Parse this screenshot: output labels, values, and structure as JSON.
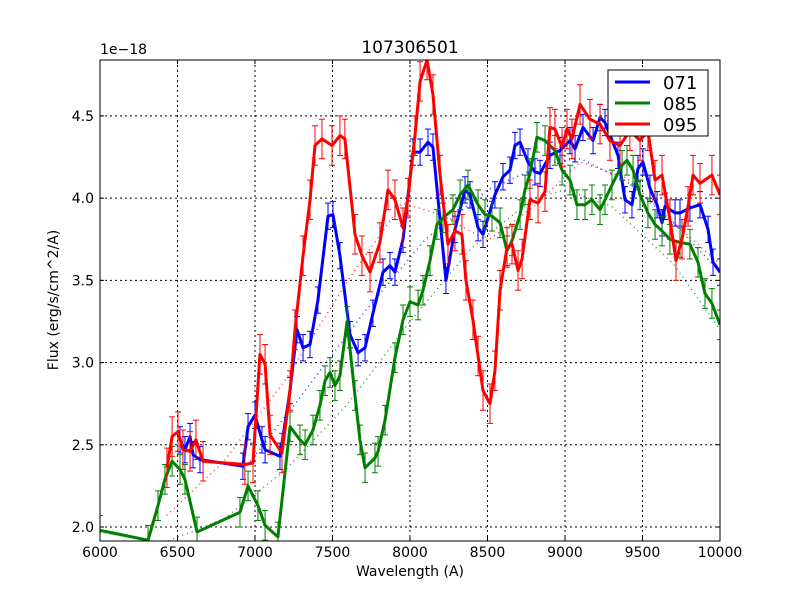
{
  "chart_data": {
    "type": "line",
    "title": "107306501",
    "xlabel": "Wavelength (A)",
    "ylabel": "Flux (erg/s/cm^2/A)",
    "offset_text": "1e−18",
    "xlim": [
      6000,
      10000
    ],
    "ylim": [
      1.915,
      4.84
    ],
    "xticks": [
      6000,
      6500,
      7000,
      7500,
      8000,
      8500,
      9000,
      9500,
      10000
    ],
    "xtick_labels": [
      "6000",
      "6500",
      "7000",
      "7500",
      "8000",
      "8500",
      "9000",
      "9500",
      "10000"
    ],
    "yticks": [
      2.0,
      2.5,
      3.0,
      3.5,
      4.0,
      4.5
    ],
    "ytick_labels": [
      "2.0",
      "2.5",
      "3.0",
      "3.5",
      "4.0",
      "4.5"
    ],
    "grid": true,
    "legend_position": "top-right",
    "series": [
      {
        "name": "071",
        "color": "#0000ff",
        "yerr": 0.08,
        "x": [
          6516,
          6548,
          6581,
          6600,
          6645,
          6922,
          6955,
          7000,
          7045,
          7065,
          7161,
          7226,
          7271,
          7310,
          7355,
          7406,
          7471,
          7503,
          7548,
          7613,
          7665,
          7710,
          7761,
          7826,
          7871,
          7903,
          7955,
          8019,
          8065,
          8116,
          8148,
          8232,
          8290,
          8355,
          8387,
          8439,
          8471,
          8548,
          8600,
          8645,
          8677,
          8710,
          8761,
          8806,
          8839,
          8903,
          8968,
          9032,
          9065,
          9116,
          9181,
          9226,
          9258,
          9342,
          9387,
          9432,
          9471,
          9503,
          9548,
          9594,
          9626,
          9645,
          9710,
          9742,
          9806,
          9871,
          9923,
          9955,
          10000
        ],
        "y": [
          2.53,
          2.47,
          2.55,
          2.44,
          2.41,
          2.37,
          2.61,
          2.68,
          2.53,
          2.47,
          2.43,
          2.83,
          3.2,
          3.09,
          3.11,
          3.38,
          3.89,
          3.9,
          3.65,
          3.17,
          3.06,
          3.09,
          3.3,
          3.55,
          3.59,
          3.55,
          3.75,
          4.28,
          4.28,
          4.34,
          4.31,
          3.5,
          3.81,
          4.05,
          4.02,
          3.82,
          3.78,
          4.02,
          4.13,
          4.17,
          4.32,
          4.34,
          4.22,
          4.16,
          4.15,
          4.26,
          4.29,
          4.35,
          4.3,
          4.43,
          4.35,
          4.49,
          4.46,
          4.26,
          3.99,
          3.96,
          4.18,
          4.22,
          4.06,
          3.96,
          3.85,
          3.95,
          3.91,
          3.91,
          3.94,
          3.96,
          3.81,
          3.61,
          3.55
        ],
        "fit": {
          "x": [
            6930,
            7300,
            7700,
            8100,
            8500,
            8900,
            9100,
            9400,
            9700,
            10000
          ],
          "y": [
            2.35,
            2.8,
            3.3,
            3.75,
            4.05,
            4.22,
            4.24,
            4.1,
            3.85,
            3.55
          ]
        }
      },
      {
        "name": "085",
        "color": "#008000",
        "yerr": 0.09,
        "x": [
          6000,
          6310,
          6374,
          6419,
          6465,
          6516,
          6548,
          6626,
          6903,
          6955,
          7019,
          7065,
          7148,
          7226,
          7290,
          7323,
          7374,
          7419,
          7452,
          7484,
          7516,
          7548,
          7594,
          7645,
          7677,
          7710,
          7774,
          7794,
          7839,
          7903,
          7955,
          8000,
          8052,
          8084,
          8129,
          8174,
          8213,
          8277,
          8323,
          8374,
          8439,
          8484,
          8529,
          8581,
          8626,
          8658,
          8710,
          8742,
          8774,
          8819,
          8871,
          8935,
          8981,
          9032,
          9077,
          9129,
          9174,
          9226,
          9258,
          9303,
          9368,
          9400,
          9439,
          9484,
          9535,
          9581,
          9626,
          9677,
          9742,
          9806,
          9858,
          9903,
          9948,
          10000
        ],
        "y": [
          1.98,
          1.92,
          2.13,
          2.29,
          2.4,
          2.35,
          2.29,
          1.97,
          2.09,
          2.25,
          2.13,
          2.01,
          1.94,
          2.61,
          2.53,
          2.5,
          2.59,
          2.74,
          2.89,
          2.94,
          2.86,
          2.92,
          3.25,
          2.8,
          2.53,
          2.36,
          2.42,
          2.46,
          2.65,
          3.03,
          3.26,
          3.37,
          3.35,
          3.44,
          3.62,
          3.84,
          3.88,
          3.93,
          4.02,
          4.08,
          3.96,
          3.9,
          3.89,
          3.85,
          3.68,
          3.74,
          3.9,
          4.05,
          4.15,
          4.37,
          4.35,
          4.29,
          4.17,
          4.11,
          3.96,
          3.96,
          3.99,
          3.93,
          3.99,
          4.08,
          4.2,
          4.23,
          4.17,
          4.02,
          3.91,
          3.84,
          3.8,
          3.75,
          3.73,
          3.72,
          3.61,
          3.42,
          3.36,
          3.23
        ],
        "fit": {
          "x": [
            6000,
            6400,
            6800,
            7200,
            7600,
            8000,
            8400,
            8800,
            9000,
            9300,
            9700,
            10000
          ],
          "y": [
            1.97,
            1.9,
            2.05,
            2.35,
            2.75,
            3.25,
            3.7,
            4.0,
            4.05,
            3.95,
            3.6,
            3.2
          ]
        }
      },
      {
        "name": "095",
        "color": "#ff0000",
        "yerr": 0.12,
        "x": [
          6432,
          6465,
          6503,
          6535,
          6581,
          6619,
          6665,
          6935,
          6987,
          7032,
          7065,
          7097,
          7174,
          7226,
          7258,
          7310,
          7355,
          7387,
          7432,
          7497,
          7548,
          7580,
          7645,
          7690,
          7742,
          7806,
          7858,
          7903,
          7955,
          7987,
          8032,
          8065,
          8110,
          8148,
          8194,
          8245,
          8290,
          8335,
          8361,
          8406,
          8439,
          8471,
          8516,
          8548,
          8581,
          8626,
          8658,
          8697,
          8723,
          8774,
          8826,
          8871,
          8903,
          8935,
          8981,
          9013,
          9045,
          9097,
          9161,
          9226,
          9290,
          9355,
          9419,
          9484,
          9535,
          9581,
          9626,
          9677,
          9716,
          9755,
          9794,
          9826,
          9871,
          9948,
          10000
        ],
        "y": [
          2.36,
          2.55,
          2.58,
          2.47,
          2.46,
          2.53,
          2.4,
          2.38,
          2.39,
          3.05,
          2.99,
          2.56,
          2.45,
          2.83,
          3.2,
          3.65,
          3.99,
          4.32,
          4.36,
          4.32,
          4.38,
          4.36,
          3.78,
          3.65,
          3.55,
          3.73,
          4.05,
          3.99,
          3.82,
          4.0,
          4.38,
          4.71,
          4.84,
          4.63,
          4.14,
          3.72,
          3.8,
          3.78,
          3.5,
          3.26,
          3.04,
          2.83,
          2.75,
          2.95,
          3.44,
          3.7,
          3.72,
          3.56,
          3.63,
          3.99,
          3.97,
          4.04,
          4.43,
          4.42,
          4.31,
          4.42,
          4.36,
          4.57,
          4.48,
          4.45,
          4.35,
          4.32,
          4.41,
          4.35,
          4.41,
          4.11,
          4.14,
          3.87,
          3.62,
          3.75,
          3.95,
          4.14,
          4.09,
          4.14,
          4.02
        ],
        "fit": {
          "x": [
            6430,
            6800,
            7200,
            7600,
            7950,
            8200,
            8500,
            8800,
            9100,
            9400,
            9700,
            10000
          ],
          "y": [
            2.07,
            2.4,
            2.9,
            3.5,
            3.97,
            3.9,
            3.74,
            3.95,
            4.22,
            4.12,
            3.85,
            3.6
          ]
        }
      }
    ]
  }
}
